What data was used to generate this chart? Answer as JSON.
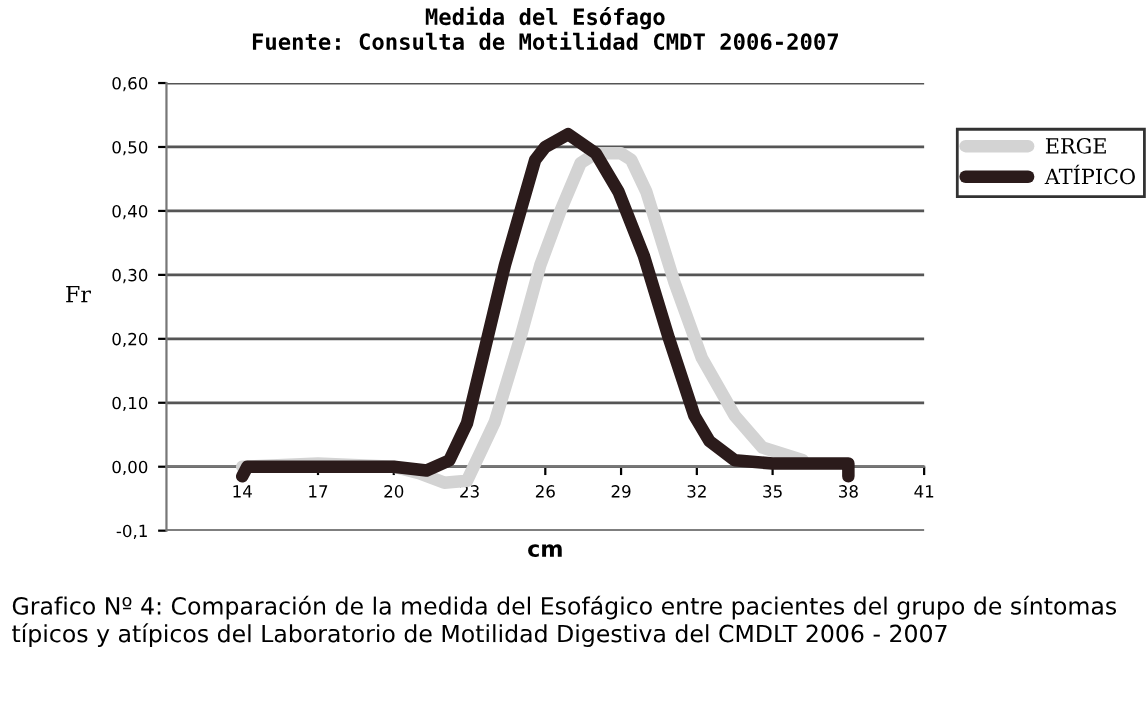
{
  "chart_data": {
    "type": "line",
    "title": "Medida del Esófago\nFuente: Consulta de Motilidad CMDT 2006-2007",
    "xlabel": "cm",
    "ylabel": "Fr",
    "annotations": [
      "Grafico Nº 4: Comparación de la medida del Esofágico entre pacientes del grupo de síntomas típicos y atípicos del Laboratorio de Motilidad Digestiva del CMDLT 2006 - 2007"
    ],
    "series": [
      {
        "name": "ERGE",
        "color": "#d3d3d3",
        "x": [
          14,
          17,
          20,
          21,
          22,
          22.9,
          24,
          25,
          25.8,
          26.6,
          27.4,
          28,
          29,
          29.4,
          30,
          31.1,
          32.2,
          33.5,
          34.6,
          36.2
        ],
        "values": [
          0,
          0.005,
          0,
          -0.01,
          -0.025,
          -0.022,
          0.07,
          0.2,
          0.315,
          0.4,
          0.475,
          0.49,
          0.49,
          0.48,
          0.43,
          0.29,
          0.17,
          0.08,
          0.03,
          0.01
        ]
      },
      {
        "name": "ATÍPICO",
        "color": "#2b1b1b",
        "x": [
          14,
          14.2,
          17,
          20,
          21.3,
          22.2,
          22.9,
          24.4,
          25.6,
          26,
          26.9,
          28,
          28.9,
          29.9,
          30.9,
          31.9,
          32.5,
          33.5,
          35,
          38,
          38
        ],
        "values": [
          -0.015,
          0,
          0,
          0,
          -0.006,
          0.01,
          0.068,
          0.315,
          0.48,
          0.5,
          0.52,
          0.49,
          0.43,
          0.33,
          0.2,
          0.08,
          0.04,
          0.01,
          0.005,
          0.005,
          -0.015
        ]
      }
    ],
    "xlim": [
      11,
      41
    ],
    "xticks": [
      14,
      17,
      20,
      23,
      26,
      29,
      32,
      35,
      38,
      41
    ],
    "ylim": [
      -0.1,
      0.6
    ],
    "yticks": [
      {
        "value": -0.1,
        "label": "-0,1"
      },
      {
        "value": 0,
        "label": "0,00"
      },
      {
        "value": 0.1,
        "label": "0,10"
      },
      {
        "value": 0.2,
        "label": "0,20"
      },
      {
        "value": 0.3,
        "label": "0,30"
      },
      {
        "value": 0.4,
        "label": "0,40"
      },
      {
        "value": 0.5,
        "label": "0,50"
      },
      {
        "value": 0.6,
        "label": "0,60"
      }
    ],
    "grid": "y",
    "legend": "right",
    "marker": "none",
    "line_style": "solid"
  }
}
